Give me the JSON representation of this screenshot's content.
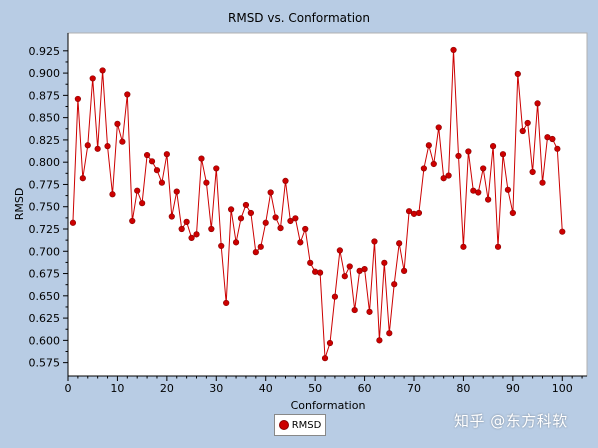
{
  "chart_data": {
    "type": "line",
    "title": "RMSD vs. Conformation",
    "xlabel": "Conformation",
    "ylabel": "RMSD",
    "xlim": [
      0,
      105
    ],
    "ylim": [
      0.56,
      0.945
    ],
    "xticks": [
      0,
      10,
      20,
      30,
      40,
      50,
      60,
      70,
      80,
      90,
      100
    ],
    "yticks": [
      0.575,
      0.6,
      0.625,
      0.65,
      0.675,
      0.7,
      0.725,
      0.75,
      0.775,
      0.8,
      0.825,
      0.85,
      0.875,
      0.9,
      0.925
    ],
    "grid": false,
    "legend_position": "bottom-center",
    "series": [
      {
        "name": "RMSD",
        "color": "#cc0000",
        "x": [
          1,
          2,
          3,
          4,
          5,
          6,
          7,
          8,
          9,
          10,
          11,
          12,
          13,
          14,
          15,
          16,
          17,
          18,
          19,
          20,
          21,
          22,
          23,
          24,
          25,
          26,
          27,
          28,
          29,
          30,
          31,
          32,
          33,
          34,
          35,
          36,
          37,
          38,
          39,
          40,
          41,
          42,
          43,
          44,
          45,
          46,
          47,
          48,
          49,
          50,
          51,
          52,
          53,
          54,
          55,
          56,
          57,
          58,
          59,
          60,
          61,
          62,
          63,
          64,
          65,
          66,
          67,
          68,
          69,
          70,
          71,
          72,
          73,
          74,
          75,
          76,
          77,
          78,
          79,
          80,
          81,
          82,
          83,
          84,
          85,
          86,
          87,
          88,
          89,
          90,
          91,
          92,
          93,
          94,
          95,
          96,
          97,
          98,
          99,
          100
        ],
        "values": [
          0.732,
          0.871,
          0.782,
          0.819,
          0.894,
          0.815,
          0.903,
          0.818,
          0.764,
          0.843,
          0.823,
          0.876,
          0.734,
          0.768,
          0.754,
          0.808,
          0.801,
          0.791,
          0.777,
          0.809,
          0.739,
          0.767,
          0.725,
          0.733,
          0.715,
          0.719,
          0.804,
          0.777,
          0.725,
          0.793,
          0.706,
          0.642,
          0.747,
          0.71,
          0.737,
          0.752,
          0.743,
          0.699,
          0.705,
          0.732,
          0.766,
          0.738,
          0.726,
          0.779,
          0.734,
          0.737,
          0.71,
          0.725,
          0.687,
          0.677,
          0.676,
          0.58,
          0.597,
          0.649,
          0.701,
          0.672,
          0.683,
          0.634,
          0.678,
          0.68,
          0.632,
          0.711,
          0.6,
          0.687,
          0.608,
          0.663,
          0.709,
          0.678,
          0.745,
          0.742,
          0.743,
          0.793,
          0.819,
          0.798,
          0.839,
          0.782,
          0.785,
          0.926,
          0.807,
          0.705,
          0.812,
          0.768,
          0.766,
          0.793,
          0.758,
          0.818,
          0.705,
          0.809,
          0.769,
          0.743,
          0.899,
          0.835,
          0.844,
          0.789,
          0.866,
          0.777,
          0.828,
          0.826,
          0.815,
          0.722
        ]
      }
    ]
  },
  "legend": {
    "label": "RMSD"
  },
  "watermark": "知乎 @东方科软"
}
